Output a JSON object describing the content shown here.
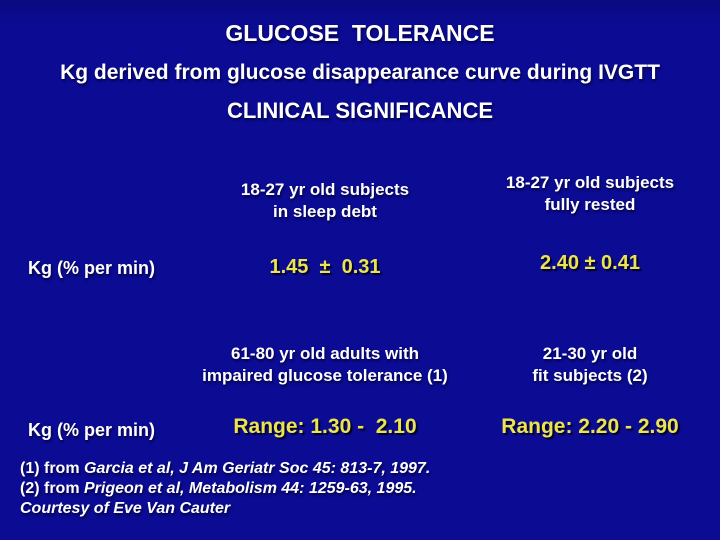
{
  "colors": {
    "background": "#0b0b94",
    "text": "#ffffff",
    "value": "#ece44e"
  },
  "slide": {
    "title": "GLUCOSE  TOLERANCE",
    "subtitle": "Kg derived from glucose disappearance curve during IVGTT",
    "section_heading": "CLINICAL SIGNIFICANCE"
  },
  "table1": {
    "row_label": "Kg (% per min)",
    "col1_header": "18-27 yr old subjects\nin sleep debt",
    "col2_header": "18-27 yr old subjects\nfully rested",
    "col1_value": "1.45  ±  0.31",
    "col2_value": "2.40 ± 0.41"
  },
  "table2": {
    "row_label": "Kg (% per min)",
    "col1_header": "61-80 yr old adults with\nimpaired glucose tolerance (1)",
    "col2_header": "21-30 yr old\nfit subjects (2)",
    "col1_value": "Range: 1.30 -  2.10",
    "col2_value": "Range: 2.20 - 2.90"
  },
  "footnotes": [
    {
      "prefix": "(1) from ",
      "citation": "Garcia et al, J Am Geriatr Soc 45: 813-7, 1997."
    },
    {
      "prefix": "(2) from ",
      "citation": "Prigeon et al, Metabolism 44: 1259-63, 1995."
    },
    {
      "prefix": "",
      "citation": "Courtesy of Eve Van Cauter"
    }
  ]
}
